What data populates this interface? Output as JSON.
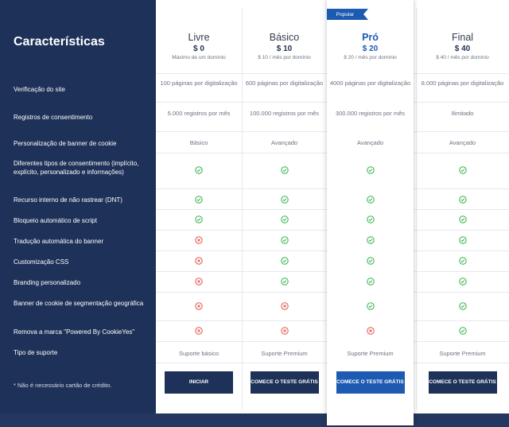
{
  "header": {
    "title": "Características"
  },
  "features": [
    "Verificação do site",
    "Registros de consentimento",
    "Personalização de banner de cookie",
    "Diferentes tipos de consentimento (implícito, explícito, personalizado e informações)",
    "Recurso interno de não rastrear (DNT)",
    "Bloqueio automático de script",
    "Tradução automática do banner",
    "Customização CSS",
    "Branding personalizado",
    "Banner de cookie de segmentação geográfica",
    "Remova a marca \"Powered By CookieYes\"",
    "Tipo de suporte"
  ],
  "note": "* Não é necessário cartão de crédito.",
  "ribbon": "Popular",
  "plans": [
    {
      "name": "Livre",
      "price": "$ 0",
      "sub": "Máximo de um domínio",
      "verification": "100 páginas por digitalização",
      "consent_logs": "5.000 registros por mês",
      "banner_custom": "Básico",
      "checks": [
        "yes",
        "yes",
        "yes",
        "no",
        "no",
        "no",
        "no",
        "no"
      ],
      "support": "Suporte básico",
      "button": "INICIAR"
    },
    {
      "name": "Básico",
      "price": "$ 10",
      "sub": "$ 10 / mês por domínio",
      "verification": "600 páginas por digitalização",
      "consent_logs": "100.000 registros por mês",
      "banner_custom": "Avançado",
      "checks": [
        "yes",
        "yes",
        "yes",
        "yes",
        "yes",
        "yes",
        "no",
        "no"
      ],
      "support": "Suporte Premium",
      "button": "COMECE O TESTE GRÁTIS"
    },
    {
      "name": "Pró",
      "price": "$ 20",
      "sub": "$ 20 / mês por domínio",
      "verification": "4000 páginas por digitalização",
      "consent_logs": "300.000 registros por mês",
      "banner_custom": "Avançado",
      "checks": [
        "yes",
        "yes",
        "yes",
        "yes",
        "yes",
        "yes",
        "yes",
        "no"
      ],
      "support": "Suporte Premium",
      "button": "COMECE O TESTE GRÁTIS"
    },
    {
      "name": "Final",
      "price": "$ 40",
      "sub": "$ 40 / mês por domínio",
      "verification": "8.000 páginas por digitalização",
      "consent_logs": "Ilimitado",
      "banner_custom": "Avançado",
      "checks": [
        "yes",
        "yes",
        "yes",
        "yes",
        "yes",
        "yes",
        "yes",
        "yes"
      ],
      "support": "Suporte Premium",
      "button": "COMECE O TESTE GRÁTIS"
    }
  ],
  "colors": {
    "check": "#2fb344",
    "cross": "#e5534b",
    "navy": "#1e3158",
    "accent": "#1d5ab2"
  }
}
